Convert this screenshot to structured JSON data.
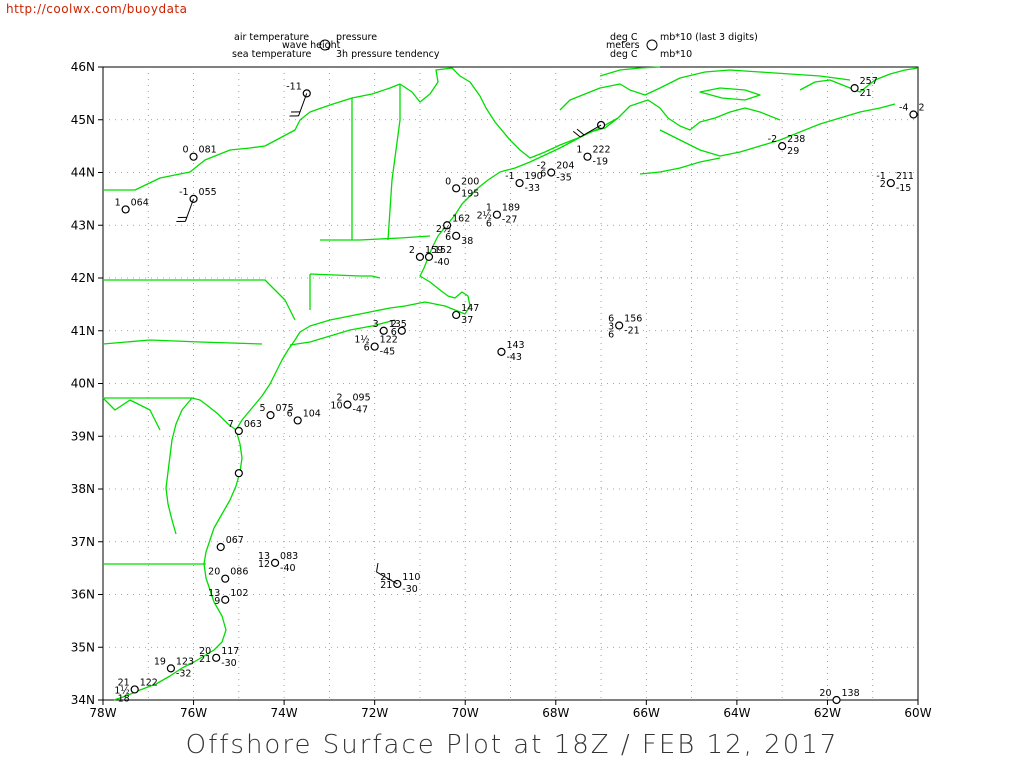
{
  "source_url": "http://coolwx.com/buoydata",
  "title": "Offshore Surface Plot at 18Z / FEB 12, 2017",
  "key": {
    "left": [
      "air temperature",
      "wave height",
      "sea temperature",
      "pressure",
      "3h pressure tendency"
    ],
    "right": [
      "deg C",
      "meters",
      "deg C",
      "mb*10 (last 3 digits)",
      "mb*10"
    ]
  },
  "axes": {
    "x_ticks": [
      "78W",
      "76W",
      "74W",
      "72W",
      "70W",
      "68W",
      "66W",
      "64W",
      "62W",
      "60W"
    ],
    "y_ticks": [
      "34N",
      "35N",
      "36N",
      "37N",
      "38N",
      "39N",
      "40N",
      "41N",
      "42N",
      "43N",
      "44N",
      "45N",
      "46N"
    ]
  },
  "extent": {
    "lon": [
      -78,
      -60
    ],
    "lat": [
      34,
      46
    ]
  },
  "colors": {
    "coastline": "#00dd00",
    "grid": "#888888",
    "station": "#000000",
    "url": "#cc2200"
  },
  "stations": [
    {
      "lon": -73.5,
      "lat": 45.5,
      "pres": "",
      "at": "-11",
      "wh": "",
      "st": "",
      "tend": "",
      "wind": [
        200,
        15
      ]
    },
    {
      "lon": -76.0,
      "lat": 44.3,
      "pres": "081",
      "at": "0",
      "wh": "",
      "st": "",
      "tend": "",
      "wind": [
        0,
        0
      ]
    },
    {
      "lon": -77.5,
      "lat": 43.3,
      "pres": "064",
      "at": "1",
      "wh": "",
      "st": "",
      "tend": "",
      "wind": [
        0,
        0
      ]
    },
    {
      "lon": -76.0,
      "lat": 43.5,
      "pres": "055",
      "at": "-1",
      "wh": "",
      "st": "",
      "tend": "",
      "wind": [
        200,
        15
      ]
    },
    {
      "lon": -67.0,
      "lat": 44.9,
      "pres": "",
      "at": "",
      "wh": "",
      "st": "",
      "tend": "",
      "wind": [
        240,
        20
      ]
    },
    {
      "lon": -67.3,
      "lat": 44.3,
      "pres": "222",
      "at": "1",
      "wh": "",
      "st": "",
      "tend": "-19",
      "wind": [
        0,
        0
      ]
    },
    {
      "lon": -68.1,
      "lat": 44.0,
      "pres": "204",
      "at": "-2",
      "wh": "6",
      "st": "",
      "tend": "-35",
      "wind": [
        0,
        0
      ]
    },
    {
      "lon": -68.8,
      "lat": 43.8,
      "pres": "190",
      "at": "-1",
      "wh": "",
      "st": "",
      "tend": "-33",
      "wind": [
        0,
        0
      ]
    },
    {
      "lon": -69.3,
      "lat": 43.2,
      "pres": "189",
      "at": "1",
      "wh": "2½",
      "st": "6",
      "tend": "-27",
      "wind": [
        0,
        0
      ]
    },
    {
      "lon": -70.2,
      "lat": 43.7,
      "pres": "200",
      "at": "0",
      "wh": "",
      "st": "",
      "tend": "195",
      "wind": [
        0,
        0
      ]
    },
    {
      "lon": -70.4,
      "lat": 43.0,
      "pres": "162",
      "at": "",
      "wh": "",
      "st": "",
      "tend": "",
      "wind": [
        0,
        0
      ]
    },
    {
      "lon": -70.2,
      "lat": 42.8,
      "pres": "",
      "at": "2½",
      "wh": "6",
      "st": "",
      "tend": "38",
      "wind": [
        0,
        0
      ]
    },
    {
      "lon": -70.8,
      "lat": 42.4,
      "pres": "152",
      "at": "",
      "wh": "",
      "st": "",
      "tend": "-40",
      "wind": [
        0,
        0
      ]
    },
    {
      "lon": -71.0,
      "lat": 42.4,
      "pres": "159",
      "at": "2",
      "wh": "",
      "st": "",
      "tend": "",
      "wind": [
        0,
        0
      ]
    },
    {
      "lon": -66.6,
      "lat": 41.1,
      "pres": "156",
      "at": "6",
      "wh": "3",
      "st": "6",
      "tend": "-21",
      "wind": [
        0,
        0
      ]
    },
    {
      "lon": -69.2,
      "lat": 40.6,
      "pres": "143",
      "at": "",
      "wh": "",
      "st": "",
      "tend": "-43",
      "wind": [
        0,
        0
      ]
    },
    {
      "lon": -70.2,
      "lat": 41.3,
      "pres": "147",
      "at": "",
      "wh": "",
      "st": "",
      "tend": "37",
      "wind": [
        0,
        0
      ]
    },
    {
      "lon": -71.8,
      "lat": 41.0,
      "pres": "135",
      "at": "3",
      "wh": "",
      "st": "",
      "tend": "",
      "wind": [
        0,
        0
      ]
    },
    {
      "lon": -71.4,
      "lat": 41.0,
      "pres": "",
      "at": "2",
      "wh": "6",
      "st": "",
      "tend": "",
      "wind": [
        0,
        0
      ]
    },
    {
      "lon": -72.0,
      "lat": 40.7,
      "pres": "122",
      "at": "1½",
      "wh": "6",
      "st": "",
      "tend": "-45",
      "wind": [
        0,
        0
      ]
    },
    {
      "lon": -72.6,
      "lat": 39.6,
      "pres": "095",
      "at": "2",
      "wh": "10",
      "st": "",
      "tend": "-47",
      "wind": [
        0,
        0
      ]
    },
    {
      "lon": -73.7,
      "lat": 39.3,
      "pres": "104",
      "at": "6",
      "wh": "",
      "st": "",
      "tend": "",
      "wind": [
        0,
        0
      ]
    },
    {
      "lon": -74.3,
      "lat": 39.4,
      "pres": "075",
      "at": "5",
      "wh": "",
      "st": "",
      "tend": "",
      "wind": [
        0,
        0
      ]
    },
    {
      "lon": -75.0,
      "lat": 39.1,
      "pres": "063",
      "at": "7",
      "wh": "",
      "st": "",
      "tend": "",
      "wind": [
        0,
        0
      ]
    },
    {
      "lon": -75.0,
      "lat": 38.3,
      "pres": "",
      "at": "",
      "wh": "",
      "st": "",
      "tend": "",
      "wind": [
        0,
        0
      ]
    },
    {
      "lon": -75.4,
      "lat": 36.9,
      "pres": "067",
      "at": "",
      "wh": "",
      "st": "",
      "tend": "",
      "wind": [
        0,
        0
      ]
    },
    {
      "lon": -75.3,
      "lat": 36.3,
      "pres": "086",
      "at": "20",
      "wh": "",
      "st": "",
      "tend": "",
      "wind": [
        0,
        0
      ]
    },
    {
      "lon": -75.3,
      "lat": 35.9,
      "pres": "102",
      "at": "13",
      "wh": "9",
      "st": "",
      "tend": "",
      "wind": [
        0,
        0
      ]
    },
    {
      "lon": -74.2,
      "lat": 36.6,
      "pres": "083",
      "at": "13",
      "wh": "12",
      "st": "",
      "tend": "-40",
      "wind": [
        0,
        0
      ]
    },
    {
      "lon": -75.5,
      "lat": 34.8,
      "pres": "117",
      "at": "20",
      "wh": "21",
      "st": "",
      "tend": "-30",
      "wind": [
        0,
        0
      ]
    },
    {
      "lon": -76.5,
      "lat": 34.6,
      "pres": "123",
      "at": "19",
      "wh": "",
      "st": "",
      "tend": "-32",
      "wind": [
        0,
        0
      ]
    },
    {
      "lon": -77.3,
      "lat": 34.2,
      "pres": "122",
      "at": "21",
      "wh": "1½",
      "st": "18",
      "tend": "",
      "wind": [
        0,
        0
      ]
    },
    {
      "lon": -71.5,
      "lat": 36.2,
      "pres": "110",
      "at": "21",
      "wh": "21",
      "st": "",
      "tend": "-30",
      "wind": [
        300,
        10
      ]
    },
    {
      "lon": -61.8,
      "lat": 34.0,
      "pres": "138",
      "at": "20",
      "wh": "",
      "st": "",
      "tend": "",
      "wind": [
        0,
        0
      ]
    },
    {
      "lon": -61.4,
      "lat": 45.6,
      "pres": "257",
      "at": "",
      "wh": "",
      "st": "",
      "tend": "21",
      "wind": [
        0,
        0
      ]
    },
    {
      "lon": -63.0,
      "lat": 44.5,
      "pres": "238",
      "at": "-2",
      "wh": "",
      "st": "",
      "tend": "29",
      "wind": [
        0,
        0
      ]
    },
    {
      "lon": -60.6,
      "lat": 43.8,
      "pres": "211",
      "at": "-1",
      "wh": "2",
      "st": "",
      "tend": "-15",
      "wind": [
        0,
        0
      ]
    },
    {
      "lon": -60.1,
      "lat": 45.1,
      "pres": "2",
      "at": "-4",
      "wh": "",
      "st": "",
      "tend": "",
      "wind": [
        0,
        0
      ]
    }
  ]
}
